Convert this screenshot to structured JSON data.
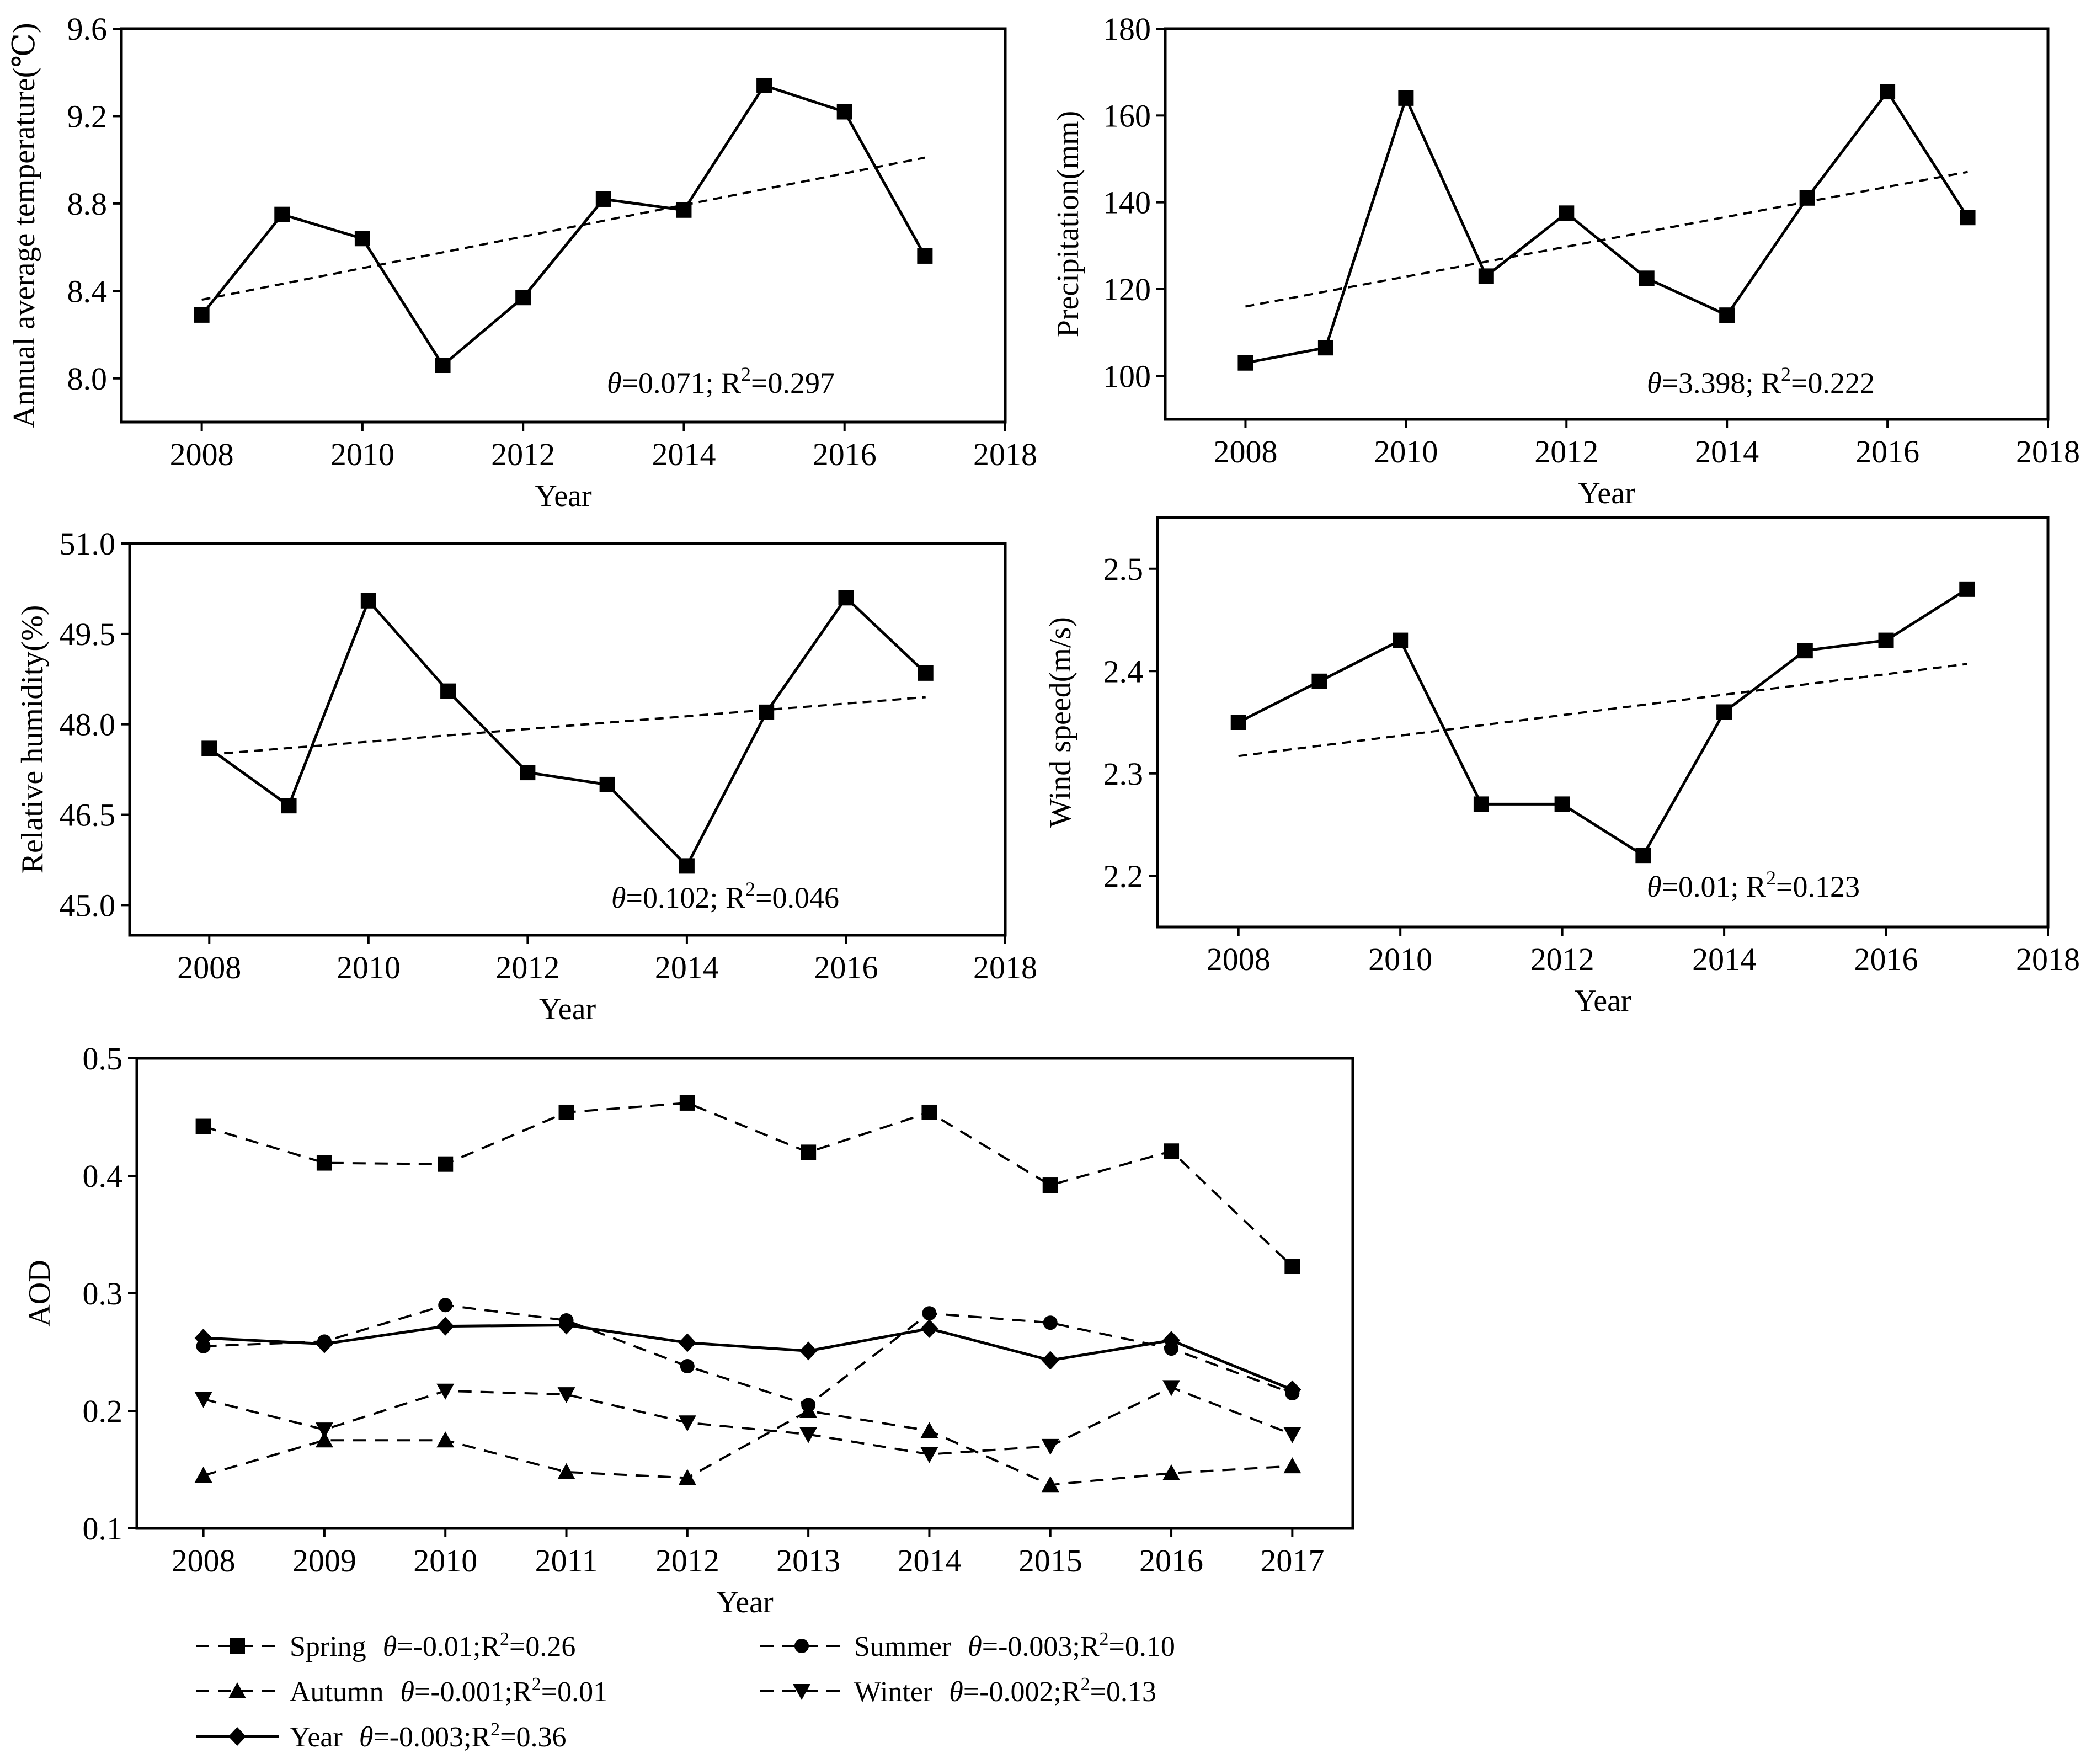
{
  "chart_data": [
    {
      "id": "temperature",
      "type": "line",
      "xlabel": "Year",
      "ylabel": "Annual average temperature(℃)",
      "xlim": [
        2007,
        2018
      ],
      "ylim": [
        7.8,
        9.6
      ],
      "xticks": [
        "2008",
        "2010",
        "2012",
        "2014",
        "2016",
        "2018"
      ],
      "yticks": [
        "8.0",
        "8.4",
        "8.8",
        "9.2",
        "9.6"
      ],
      "x": [
        2008,
        2009,
        2010,
        2011,
        2012,
        2013,
        2014,
        2015,
        2016,
        2017
      ],
      "series": [
        {
          "style": "solid",
          "marker": "square",
          "values": [
            8.29,
            8.75,
            8.64,
            8.06,
            8.37,
            8.82,
            8.77,
            9.34,
            9.22,
            8.56
          ]
        },
        {
          "style": "dashed",
          "marker": "none",
          "trend": true,
          "x": [
            2008,
            2017
          ],
          "values": [
            8.36,
            9.01
          ]
        }
      ],
      "annotation": {
        "theta_symbol": "θ",
        "theta_text": "=0.071; ",
        "r_text": "R",
        "sup": "2",
        "r_value": "=0.297"
      }
    },
    {
      "id": "precipitation",
      "type": "line",
      "xlabel": "Year",
      "ylabel": "Precipitation(mm)",
      "xlim": [
        2007,
        2018
      ],
      "ylim": [
        90,
        180
      ],
      "xticks": [
        "2008",
        "2010",
        "2012",
        "2014",
        "2016",
        "2018"
      ],
      "yticks": [
        "100",
        "120",
        "140",
        "160",
        "180"
      ],
      "x": [
        2008,
        2009,
        2010,
        2011,
        2012,
        2013,
        2014,
        2015,
        2016,
        2017
      ],
      "series": [
        {
          "style": "solid",
          "marker": "square",
          "values": [
            103,
            106.5,
            164,
            123,
            137.5,
            122.5,
            114,
            141,
            165.5,
            136.5
          ]
        },
        {
          "style": "dashed",
          "marker": "none",
          "trend": true,
          "x": [
            2008,
            2017
          ],
          "values": [
            116,
            147
          ]
        }
      ],
      "annotation": {
        "theta_symbol": "θ",
        "theta_text": "=3.398; ",
        "r_text": "R",
        "sup": "2",
        "r_value": "=0.222"
      }
    },
    {
      "id": "humidity",
      "type": "line",
      "xlabel": "Year",
      "ylabel": "Relative humidity(%)",
      "xlim": [
        2007,
        2018
      ],
      "ylim": [
        44.5,
        51.0
      ],
      "xticks": [
        "2008",
        "2010",
        "2012",
        "2014",
        "2016",
        "2018"
      ],
      "yticks": [
        "45.0",
        "46.5",
        "48.0",
        "49.5",
        "51.0"
      ],
      "x": [
        2008,
        2009,
        2010,
        2011,
        2012,
        2013,
        2014,
        2015,
        2016,
        2017
      ],
      "series": [
        {
          "style": "solid",
          "marker": "square",
          "values": [
            47.6,
            46.65,
            50.05,
            48.55,
            47.2,
            47.0,
            45.65,
            48.2,
            50.1,
            48.85
          ]
        },
        {
          "style": "dashed",
          "marker": "none",
          "trend": true,
          "x": [
            2008,
            2017
          ],
          "values": [
            47.5,
            48.45
          ]
        }
      ],
      "annotation": {
        "theta_symbol": "θ",
        "theta_text": "=0.102; ",
        "r_text": "R",
        "sup": "2",
        "r_value": "=0.046"
      }
    },
    {
      "id": "wind",
      "type": "line",
      "xlabel": "Year",
      "ylabel": "Wind speed(m/s)",
      "xlim": [
        2007,
        2018
      ],
      "ylim": [
        2.15,
        2.55
      ],
      "xticks": [
        "2008",
        "2010",
        "2012",
        "2014",
        "2016",
        "2018"
      ],
      "yticks": [
        "2.2",
        "2.3",
        "2.4",
        "2.5"
      ],
      "x": [
        2008,
        2009,
        2010,
        2011,
        2012,
        2013,
        2014,
        2015,
        2016,
        2017
      ],
      "series": [
        {
          "style": "solid",
          "marker": "square",
          "values": [
            2.35,
            2.39,
            2.43,
            2.27,
            2.27,
            2.22,
            2.36,
            2.42,
            2.43,
            2.48
          ]
        },
        {
          "style": "dashed",
          "marker": "none",
          "trend": true,
          "x": [
            2008,
            2017
          ],
          "values": [
            2.317,
            2.407
          ]
        }
      ],
      "annotation": {
        "theta_symbol": "θ",
        "theta_text": "=0.01; ",
        "r_text": "R",
        "sup": "2",
        "r_value": "=0.123"
      }
    },
    {
      "id": "aod",
      "type": "line",
      "xlabel": "Year",
      "ylabel": "AOD",
      "xlim": [
        2007.45,
        2017.5
      ],
      "ylim": [
        0.1,
        0.5
      ],
      "xticks": [
        "2008",
        "2009",
        "2010",
        "2011",
        "2012",
        "2013",
        "2014",
        "2015",
        "2016",
        "2017"
      ],
      "yticks": [
        "0.1",
        "0.2",
        "0.3",
        "0.4",
        "0.5"
      ],
      "x": [
        2008,
        2009,
        2010,
        2011,
        2012,
        2013,
        2014,
        2015,
        2016,
        2017
      ],
      "series": [
        {
          "name": "Spring",
          "stat_theta": "=-0.01;",
          "stat_r": "=0.26",
          "style": "dashed",
          "marker": "square",
          "values": [
            0.442,
            0.411,
            0.41,
            0.454,
            0.462,
            0.42,
            0.454,
            0.392,
            0.421,
            0.323
          ]
        },
        {
          "name": "Summer",
          "stat_theta": "=-0.003;",
          "stat_r": "=0.10",
          "style": "dashed",
          "marker": "circle",
          "values": [
            0.255,
            0.259,
            0.29,
            0.277,
            0.238,
            0.205,
            0.283,
            0.275,
            0.253,
            0.215
          ]
        },
        {
          "name": "Autumn",
          "stat_theta": "=-0.001;",
          "stat_r": "=0.01",
          "style": "dashed",
          "marker": "triangle-up",
          "values": [
            0.145,
            0.175,
            0.175,
            0.148,
            0.143,
            0.2,
            0.183,
            0.137,
            0.147,
            0.153
          ]
        },
        {
          "name": "Winter",
          "stat_theta": "=-0.002;",
          "stat_r": "=0.13",
          "style": "dashed",
          "marker": "triangle-down",
          "values": [
            0.21,
            0.184,
            0.217,
            0.214,
            0.19,
            0.18,
            0.163,
            0.17,
            0.22,
            0.18
          ]
        },
        {
          "name": "Year",
          "stat_theta": "=-0.003;",
          "stat_r": "=0.36",
          "style": "solid",
          "marker": "diamond",
          "values": [
            0.262,
            0.257,
            0.272,
            0.273,
            0.258,
            0.251,
            0.27,
            0.243,
            0.26,
            0.218
          ]
        }
      ],
      "legend": {
        "position": "bottom",
        "theta_symbol": "θ",
        "r_text": "R",
        "sup": "2"
      }
    }
  ]
}
